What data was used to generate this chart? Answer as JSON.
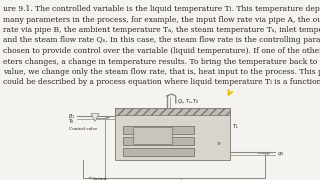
{
  "bg_color": "#f5f3ef",
  "text_color": "#2a2520",
  "diagram_color": "#888880",
  "text_lines": [
    "ure 9.1. The controlled variable is the liquid temperature Tₗ. This temperature depends on",
    "many parameters in the process, for example, the input flow rate via pipe A, the output flow",
    "rate via pipe B, the ambient temperature Tₐ, the steam temperature Tₛ, inlet temperature Tᴅ,",
    "and the steam flow rate Qₛ. In this case, the steam flow rate is the controlling parameter",
    "chosen to provide control over the variable (liquid temperature). If one of the other param-",
    "eters changes, a change in temperature results. To bring the temperature back to the setpoint",
    "value, we change only the steam flow rate, that is, heat input to the process. This process",
    "could be described by a process equation where liquid temperature Tₗ is a function as"
  ],
  "cursor_color": "#e8c800",
  "tank_fill": "#d8d5cc",
  "hatch_fill": "#c0bcb4",
  "coil_fill": "#b8b5ac",
  "box_fill": "#e8e5e0"
}
